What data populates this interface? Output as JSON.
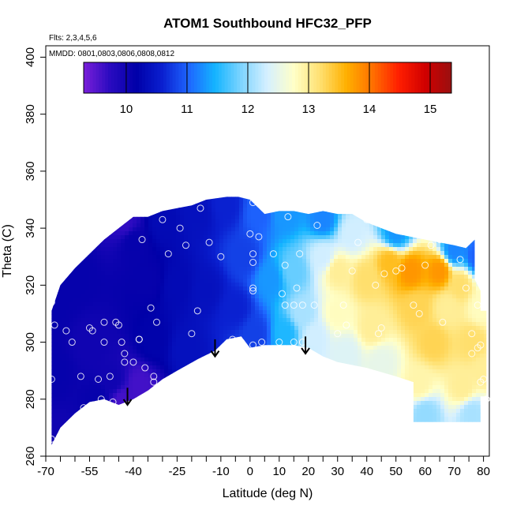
{
  "chart_data": {
    "type": "heatmap",
    "title": "ATOM1 Southbound HFC32_PFP",
    "flights_label": "Flts: 2,3,4,5,6",
    "dates_label": "MMDD: 0801,0803,0806,0808,0812",
    "xlabel": "Latitude (deg N)",
    "ylabel": "Theta (C)",
    "xlim": [
      -70,
      82
    ],
    "ylim": [
      260,
      404
    ],
    "x_tick_labels": [
      "-70",
      "-55",
      "-40",
      "-25",
      "-10",
      "0",
      "10",
      "20",
      "30",
      "40",
      "50",
      "60",
      "70",
      "80"
    ],
    "x_tick_values": [
      -70,
      -55,
      -40,
      -25,
      -10,
      0,
      10,
      20,
      30,
      40,
      50,
      60,
      70,
      80
    ],
    "x_minor_ticks": [
      -65,
      -60,
      -50,
      -45,
      -35,
      -30,
      -20,
      -15,
      -5,
      5,
      15,
      25,
      35,
      45,
      55,
      65,
      75
    ],
    "y_tick_labels": [
      "260",
      "280",
      "300",
      "320",
      "340",
      "360",
      "380",
      "400"
    ],
    "y_tick_values": [
      260,
      280,
      300,
      320,
      340,
      360,
      380,
      400
    ],
    "colorbar": {
      "range": [
        9.3,
        15.35
      ],
      "tick_labels": [
        "10",
        "11",
        "12",
        "13",
        "14",
        "15"
      ],
      "tick_values": [
        10,
        11,
        12,
        13,
        14,
        15
      ],
      "colors": [
        "#7a1fd9",
        "#2a0bc0",
        "#0000a8",
        "#0a20d0",
        "#1e66ff",
        "#14b4ff",
        "#7ed4ff",
        "#d6f0ff",
        "#ffffc8",
        "#ffe070",
        "#ffb000",
        "#ff7000",
        "#ff1e00",
        "#d00000",
        "#9a1010"
      ]
    },
    "field_region": {
      "top_boundary": [
        [
          -68,
          311
        ],
        [
          -65,
          320
        ],
        [
          -60,
          326
        ],
        [
          -55,
          331
        ],
        [
          -50,
          336
        ],
        [
          -45,
          340
        ],
        [
          -40,
          344
        ],
        [
          -35,
          344
        ],
        [
          -30,
          346
        ],
        [
          -25,
          347
        ],
        [
          -20,
          348
        ],
        [
          -15,
          350
        ],
        [
          -8,
          351
        ],
        [
          -4,
          351
        ],
        [
          0,
          350
        ],
        [
          5,
          345
        ],
        [
          10,
          346
        ],
        [
          15,
          346
        ],
        [
          20,
          345
        ],
        [
          25,
          346
        ],
        [
          30,
          345
        ],
        [
          35,
          345
        ],
        [
          40,
          342
        ],
        [
          45,
          340
        ],
        [
          50,
          338
        ],
        [
          55,
          337
        ],
        [
          60,
          336
        ],
        [
          65,
          335
        ],
        [
          70,
          334
        ],
        [
          74,
          333
        ],
        [
          77,
          336
        ],
        [
          77,
          322
        ],
        [
          79,
          318
        ],
        [
          79,
          311
        ],
        [
          81,
          311
        ]
      ],
      "bottom_boundary": [
        [
          81,
          311
        ],
        [
          81,
          281
        ],
        [
          79,
          281
        ],
        [
          79,
          272
        ],
        [
          70,
          272
        ],
        [
          62,
          272
        ],
        [
          56,
          272
        ],
        [
          56,
          286
        ],
        [
          50,
          288
        ],
        [
          40,
          291
        ],
        [
          30,
          293
        ],
        [
          25,
          295
        ],
        [
          20,
          298
        ],
        [
          15,
          299
        ],
        [
          10,
          299
        ],
        [
          5,
          299
        ],
        [
          0,
          298
        ],
        [
          -3,
          302
        ],
        [
          -8,
          301
        ],
        [
          -12,
          297
        ],
        [
          -18,
          294
        ],
        [
          -25,
          290
        ],
        [
          -30,
          287
        ],
        [
          -35,
          283
        ],
        [
          -40,
          280
        ],
        [
          -45,
          278
        ],
        [
          -50,
          280
        ],
        [
          -55,
          279
        ],
        [
          -60,
          275
        ],
        [
          -65,
          270
        ],
        [
          -68,
          264
        ],
        [
          -68,
          265
        ]
      ]
    },
    "field_nodes": [
      {
        "lat": -67,
        "theta": 266,
        "value": 10.0
      },
      {
        "lat": -67,
        "theta": 290,
        "value": 10.1
      },
      {
        "lat": -67,
        "theta": 312,
        "value": 10.1
      },
      {
        "lat": -60,
        "theta": 322,
        "value": 10.1
      },
      {
        "lat": -55,
        "theta": 300,
        "value": 10.0
      },
      {
        "lat": -52,
        "theta": 280,
        "value": 10.1
      },
      {
        "lat": -47,
        "theta": 286,
        "value": 10.0
      },
      {
        "lat": -44,
        "theta": 280,
        "value": 9.6
      },
      {
        "lat": -43,
        "theta": 342,
        "value": 9.7
      },
      {
        "lat": -40,
        "theta": 335,
        "value": 10.1
      },
      {
        "lat": -38,
        "theta": 285,
        "value": 9.6
      },
      {
        "lat": -35,
        "theta": 322,
        "value": 10.1
      },
      {
        "lat": -33,
        "theta": 300,
        "value": 10.2
      },
      {
        "lat": -30,
        "theta": 342,
        "value": 10.3
      },
      {
        "lat": -25,
        "theta": 320,
        "value": 10.3
      },
      {
        "lat": -22,
        "theta": 297,
        "value": 10.4
      },
      {
        "lat": -18,
        "theta": 345,
        "value": 10.4
      },
      {
        "lat": -15,
        "theta": 318,
        "value": 10.4
      },
      {
        "lat": -8,
        "theta": 348,
        "value": 10.6
      },
      {
        "lat": -5,
        "theta": 312,
        "value": 10.6
      },
      {
        "lat": -2,
        "theta": 330,
        "value": 10.8
      },
      {
        "lat": 2,
        "theta": 303,
        "value": 10.8
      },
      {
        "lat": 3,
        "theta": 346,
        "value": 11.0
      },
      {
        "lat": 7,
        "theta": 322,
        "value": 11.3
      },
      {
        "lat": 12,
        "theta": 303,
        "value": 11.5
      },
      {
        "lat": 12,
        "theta": 345,
        "value": 11.3
      },
      {
        "lat": 15,
        "theta": 325,
        "value": 11.8
      },
      {
        "lat": 18,
        "theta": 310,
        "value": 12.1
      },
      {
        "lat": 22,
        "theta": 302,
        "value": 12.3
      },
      {
        "lat": 25,
        "theta": 330,
        "value": 12.3
      },
      {
        "lat": 25,
        "theta": 343,
        "value": 11.2
      },
      {
        "lat": 30,
        "theta": 310,
        "value": 12.8
      },
      {
        "lat": 30,
        "theta": 325,
        "value": 13.0
      },
      {
        "lat": 33,
        "theta": 296,
        "value": 12.4
      },
      {
        "lat": 35,
        "theta": 338,
        "value": 12.3
      },
      {
        "lat": 40,
        "theta": 322,
        "value": 13.2
      },
      {
        "lat": 42,
        "theta": 305,
        "value": 13.0
      },
      {
        "lat": 45,
        "theta": 293,
        "value": 12.5
      },
      {
        "lat": 48,
        "theta": 328,
        "value": 13.5
      },
      {
        "lat": 50,
        "theta": 338,
        "value": 11.3
      },
      {
        "lat": 55,
        "theta": 325,
        "value": 13.8
      },
      {
        "lat": 57,
        "theta": 312,
        "value": 13.3
      },
      {
        "lat": 58,
        "theta": 285,
        "value": 12.9
      },
      {
        "lat": 60,
        "theta": 275,
        "value": 12.0
      },
      {
        "lat": 63,
        "theta": 300,
        "value": 13.3
      },
      {
        "lat": 65,
        "theta": 325,
        "value": 13.8
      },
      {
        "lat": 68,
        "theta": 312,
        "value": 13.0
      },
      {
        "lat": 70,
        "theta": 332,
        "value": 11.2
      },
      {
        "lat": 72,
        "theta": 320,
        "value": 13.2
      },
      {
        "lat": 73,
        "theta": 284,
        "value": 13.0
      },
      {
        "lat": 76,
        "theta": 275,
        "value": 12.1
      },
      {
        "lat": 76,
        "theta": 300,
        "value": 13.2
      },
      {
        "lat": 78,
        "theta": 330,
        "value": 11.0
      },
      {
        "lat": 79,
        "theta": 312,
        "value": 12.8
      },
      {
        "lat": 80,
        "theta": 290,
        "value": 13.0
      }
    ],
    "sample_points": [
      [
        -68,
        266
      ],
      [
        -68,
        287
      ],
      [
        -68,
        314
      ],
      [
        -67,
        306
      ],
      [
        -63,
        304
      ],
      [
        -61,
        300
      ],
      [
        -58,
        288
      ],
      [
        -57,
        277
      ],
      [
        -55,
        305
      ],
      [
        -54,
        304
      ],
      [
        -52,
        287
      ],
      [
        -51,
        280
      ],
      [
        -50,
        307
      ],
      [
        -50,
        300
      ],
      [
        -48,
        288
      ],
      [
        -47,
        279
      ],
      [
        -46,
        307
      ],
      [
        -45,
        306
      ],
      [
        -44,
        300
      ],
      [
        -43,
        296
      ],
      [
        -43,
        293
      ],
      [
        -42,
        278
      ],
      [
        -40,
        293
      ],
      [
        -38,
        301
      ],
      [
        -38,
        301
      ],
      [
        -37,
        336
      ],
      [
        -36,
        291
      ],
      [
        -34,
        312
      ],
      [
        -33,
        288
      ],
      [
        -33,
        286
      ],
      [
        -32,
        307
      ],
      [
        -30,
        343
      ],
      [
        -28,
        331
      ],
      [
        -24,
        340
      ],
      [
        -22,
        334
      ],
      [
        -20,
        303
      ],
      [
        -18,
        311
      ],
      [
        -17,
        347
      ],
      [
        -14,
        335
      ],
      [
        -10,
        330
      ],
      [
        -6,
        301
      ],
      [
        -3,
        300
      ],
      [
        -2,
        297
      ],
      [
        1,
        349
      ],
      [
        0,
        338
      ],
      [
        1,
        331
      ],
      [
        1,
        328
      ],
      [
        1,
        319
      ],
      [
        1,
        318
      ],
      [
        1,
        299
      ],
      [
        3,
        337
      ],
      [
        4,
        300
      ],
      [
        8,
        331
      ],
      [
        10,
        300
      ],
      [
        11,
        317
      ],
      [
        12,
        313
      ],
      [
        12,
        327
      ],
      [
        13,
        344
      ],
      [
        15,
        300
      ],
      [
        15,
        313
      ],
      [
        16,
        319
      ],
      [
        17,
        331
      ],
      [
        18,
        300
      ],
      [
        18,
        313
      ],
      [
        22,
        313
      ],
      [
        23,
        341
      ],
      [
        27,
        347
      ],
      [
        30,
        303
      ],
      [
        32,
        313
      ],
      [
        33,
        306
      ],
      [
        35,
        325
      ],
      [
        37,
        335
      ],
      [
        40,
        343
      ],
      [
        43,
        320
      ],
      [
        44,
        303
      ],
      [
        45,
        305
      ],
      [
        46,
        324
      ],
      [
        50,
        325
      ],
      [
        52,
        326
      ],
      [
        56,
        313
      ],
      [
        58,
        310
      ],
      [
        60,
        327
      ],
      [
        62,
        334
      ],
      [
        65,
        336
      ],
      [
        66,
        307
      ],
      [
        72,
        329
      ],
      [
        74,
        319
      ],
      [
        76,
        303
      ],
      [
        76,
        296
      ],
      [
        78,
        313
      ],
      [
        78,
        298
      ],
      [
        79,
        286
      ],
      [
        79,
        299
      ],
      [
        80,
        287
      ],
      [
        81,
        280
      ]
    ],
    "arrows": [
      {
        "lat": -42,
        "theta_top": 284,
        "theta_bottom": 278
      },
      {
        "lat": -12,
        "theta_top": 301,
        "theta_bottom": 295
      },
      {
        "lat": 19,
        "theta_top": 302,
        "theta_bottom": 296
      }
    ]
  }
}
